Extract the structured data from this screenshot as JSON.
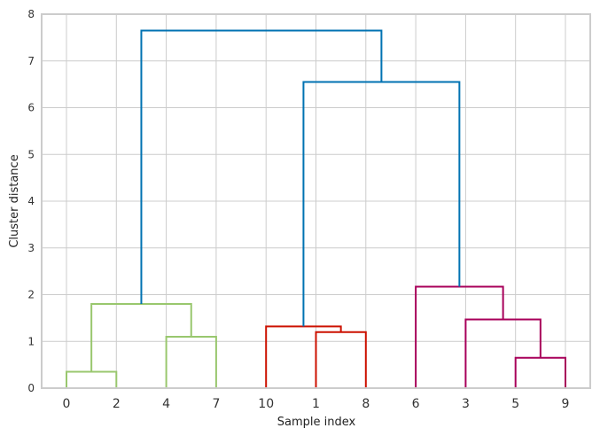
{
  "chart_data": {
    "type": "dendrogram",
    "title": "",
    "xlabel": "Sample index",
    "ylabel": "Cluster distance",
    "ylim": [
      0,
      8
    ],
    "yticks": [
      0,
      1,
      2,
      3,
      4,
      5,
      6,
      7,
      8
    ],
    "leaves": [
      "0",
      "2",
      "4",
      "7",
      "10",
      "1",
      "8",
      "6",
      "3",
      "5",
      "9"
    ],
    "grid": true,
    "colors": {
      "green": "#99c76e",
      "red": "#cc1100",
      "magenta": "#a8005a",
      "blue": "#0072b2",
      "grid": "#cccccc",
      "frame": "#cccccc"
    },
    "merges": [
      {
        "left": {
          "leaf": 0
        },
        "right": {
          "leaf": 1
        },
        "height": 0.35,
        "color": "green"
      },
      {
        "left": {
          "leaf": 2
        },
        "right": {
          "leaf": 3
        },
        "height": 1.1,
        "color": "green"
      },
      {
        "left": {
          "merge": 0
        },
        "right": {
          "merge": 1
        },
        "height": 1.8,
        "color": "green"
      },
      {
        "left": {
          "leaf": 5
        },
        "right": {
          "leaf": 6
        },
        "height": 1.2,
        "color": "red"
      },
      {
        "left": {
          "leaf": 4
        },
        "right": {
          "merge": 3
        },
        "height": 1.32,
        "color": "red"
      },
      {
        "left": {
          "leaf": 9
        },
        "right": {
          "leaf": 10
        },
        "height": 0.65,
        "color": "magenta"
      },
      {
        "left": {
          "leaf": 8
        },
        "right": {
          "merge": 5
        },
        "height": 1.47,
        "color": "magenta"
      },
      {
        "left": {
          "leaf": 7
        },
        "right": {
          "merge": 6
        },
        "height": 2.17,
        "color": "magenta"
      },
      {
        "left": {
          "merge": 4
        },
        "right": {
          "merge": 7
        },
        "height": 6.55,
        "color": "blue"
      },
      {
        "left": {
          "merge": 2
        },
        "right": {
          "merge": 8
        },
        "height": 7.65,
        "color": "blue"
      }
    ]
  }
}
